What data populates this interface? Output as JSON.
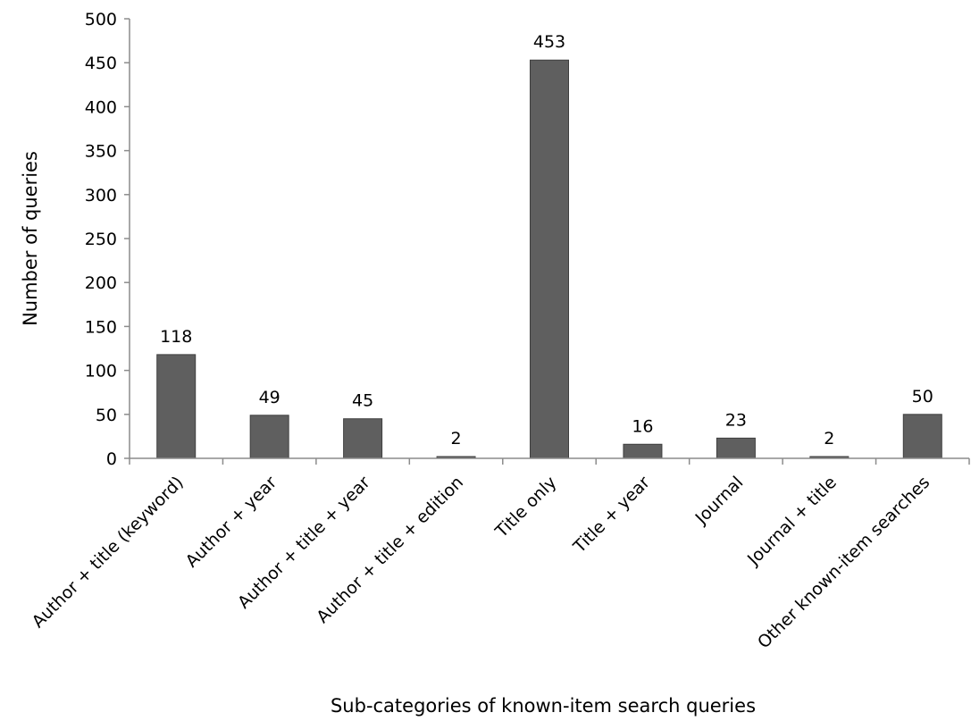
{
  "chart_data": {
    "type": "bar",
    "title": "",
    "xlabel": "Sub-categories of known-item search queries",
    "ylabel": "Number of queries",
    "ylim": [
      0,
      500
    ],
    "yticks": [
      0,
      50,
      100,
      150,
      200,
      250,
      300,
      350,
      400,
      450,
      500
    ],
    "grid": false,
    "legend": "none",
    "bar_color": "#5f5f5f",
    "bar_edge_color": "#3f3f3f",
    "axis_color": "#8c8c8c",
    "categories": [
      "Author + title (keyword)",
      "Author + year",
      "Author + title + year",
      "Author + title + edition",
      "Title only",
      "Title + year",
      "Journal",
      "Journal + title",
      "Other known-item searches"
    ],
    "values": [
      118,
      49,
      45,
      2,
      453,
      16,
      23,
      2,
      50
    ],
    "data_labels": [
      "118",
      "49",
      "45",
      "2",
      "453",
      "16",
      "23",
      "2",
      "50"
    ]
  }
}
